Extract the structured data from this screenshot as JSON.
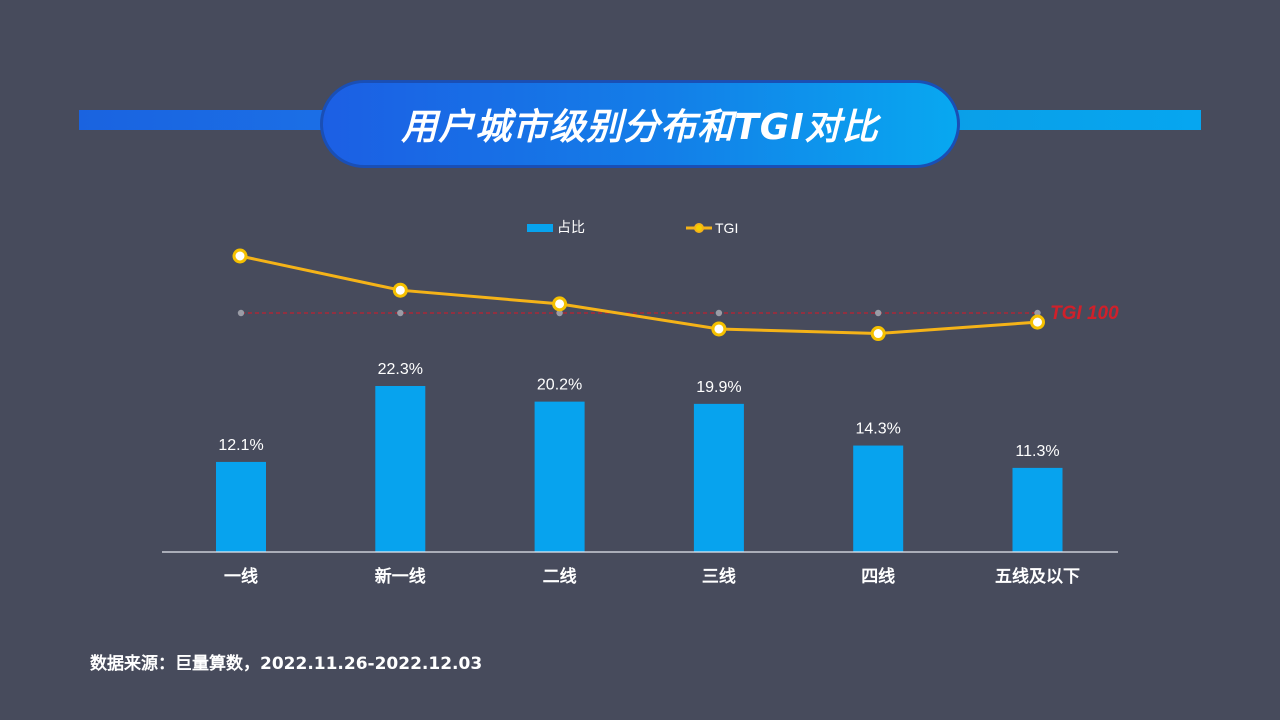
{
  "header": {
    "title": "用户城市级别分布和TGI对比"
  },
  "chart_data": {
    "type": "bar",
    "categories": [
      "一线",
      "新一线",
      "二线",
      "三线",
      "四线",
      "五线及以下"
    ],
    "series": [
      {
        "name": "占比",
        "type": "bar",
        "values": [
          12.1,
          22.3,
          20.2,
          19.9,
          14.3,
          11.3
        ],
        "labels": [
          "12.1%",
          "22.3%",
          "20.2%",
          "19.9%",
          "14.3%",
          "11.3%"
        ],
        "color": "#07a3ee"
      },
      {
        "name": "TGI",
        "type": "line",
        "values": [
          125,
          110,
          104,
          93,
          91,
          96
        ],
        "color": "#f5b318"
      }
    ],
    "reference_line": {
      "value": 100,
      "label": "TGI 100",
      "color": "#d0202a"
    },
    "bar_ylim": [
      0,
      30
    ],
    "tgi_ylim": [
      -20,
      130
    ],
    "legend_position": "top-center",
    "grid": false
  },
  "footer": {
    "source": "数据来源：巨量算数，2022.11.26-2022.12.03"
  },
  "colors": {
    "background": "#474b5c",
    "title_gradient_start": "#1c5fe4",
    "title_gradient_end": "#08a8f0",
    "axis_line": "#e6e8ee",
    "text": "#ffffff"
  }
}
